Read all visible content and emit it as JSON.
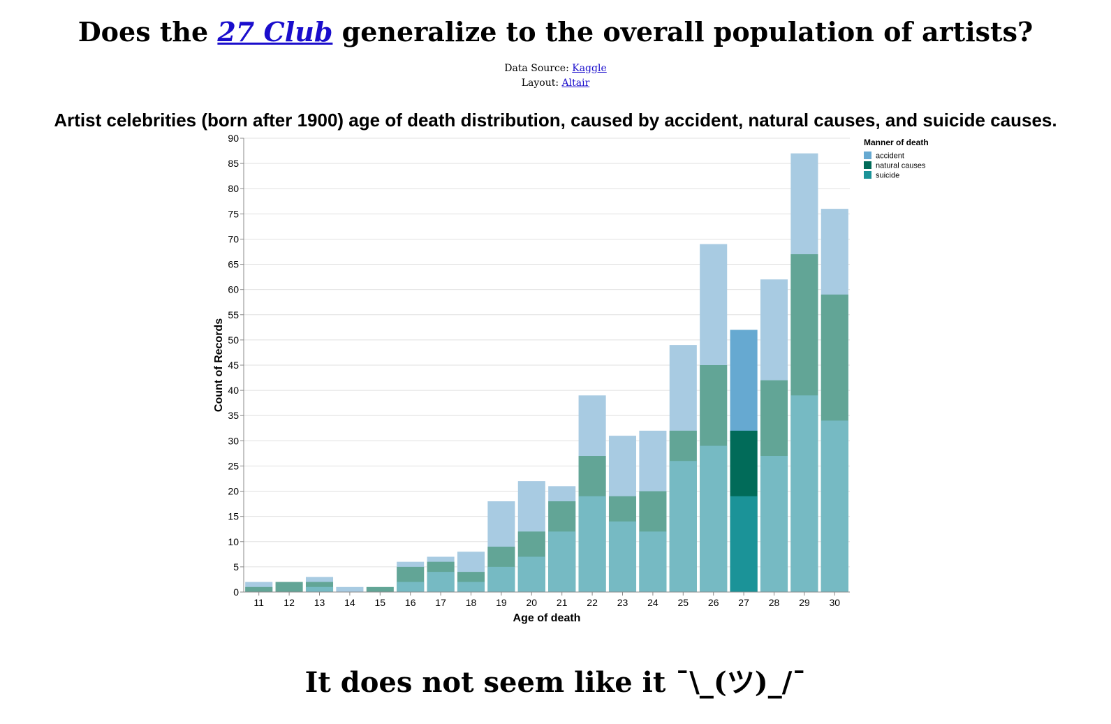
{
  "page": {
    "title_prefix": "Does the ",
    "title_link": "27 Club",
    "title_suffix": " generalize to the overall population of artists?",
    "source_label": "Data Source: ",
    "source_link": "Kaggle",
    "layout_label": "Layout: ",
    "layout_link": "Altair",
    "chart_title": "Artist celebrities (born after 1900) age of death distribution, caused by accident, natural causes, and suicide causes.",
    "conclusion": "It does not seem like it ¯\\_(ツ)_/¯"
  },
  "chart_data": {
    "type": "bar",
    "title": "Artist celebrities (born after 1900) age of death distribution, caused by accident, natural causes, and suicide causes.",
    "xlabel": "Age of death",
    "ylabel": "Count of Records",
    "ylim": [
      0,
      90
    ],
    "yticks": [
      0,
      5,
      10,
      15,
      20,
      25,
      30,
      35,
      40,
      45,
      50,
      55,
      60,
      65,
      70,
      75,
      80,
      85,
      90
    ],
    "grid": true,
    "overlay": true,
    "highlight_category": "27",
    "categories": [
      "11",
      "12",
      "13",
      "14",
      "15",
      "16",
      "17",
      "18",
      "19",
      "20",
      "21",
      "22",
      "23",
      "24",
      "25",
      "26",
      "27",
      "28",
      "29",
      "30"
    ],
    "legend": {
      "title": "Manner of death",
      "position": "top-right"
    },
    "series": [
      {
        "name": "accident",
        "color": "#a8cbe2",
        "highlight_color": "#66a9d1",
        "values": [
          2,
          0,
          3,
          1,
          0,
          6,
          7,
          8,
          18,
          22,
          21,
          39,
          31,
          32,
          49,
          69,
          52,
          62,
          87,
          76
        ]
      },
      {
        "name": "natural causes",
        "color": "#62a596",
        "highlight_color": "#016b59",
        "values": [
          1,
          2,
          2,
          0,
          1,
          5,
          6,
          4,
          9,
          12,
          18,
          27,
          19,
          20,
          32,
          45,
          32,
          42,
          67,
          59
        ]
      },
      {
        "name": "suicide",
        "color": "#76bac3",
        "highlight_color": "#1b9398",
        "values": [
          0,
          0,
          1,
          0,
          0,
          2,
          4,
          2,
          5,
          7,
          12,
          19,
          14,
          12,
          26,
          29,
          19,
          27,
          39,
          34
        ]
      }
    ],
    "legend_colors": [
      "#66a9d1",
      "#016b59",
      "#1b9398"
    ]
  }
}
